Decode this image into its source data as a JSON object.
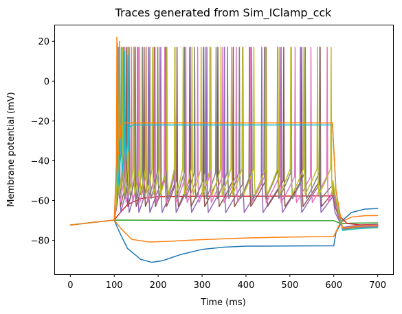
{
  "chart_data": {
    "type": "line",
    "title": "Traces generated from Sim_IClamp_cck",
    "xlabel": "Time (ms)",
    "ylabel": "Membrane potential (mV)",
    "xlim": [
      -35,
      735
    ],
    "ylim": [
      -97,
      28
    ],
    "xticks": [
      0,
      100,
      200,
      300,
      400,
      500,
      600,
      700
    ],
    "yticks": [
      -80,
      -60,
      -40,
      -20,
      0,
      20
    ],
    "grid": false,
    "legend": "none",
    "stim_start": 100,
    "stim_end": 600,
    "series": [
      {
        "color": "#1f77b4",
        "kind": "passive",
        "points": [
          [
            0,
            -72.3
          ],
          [
            50,
            -71
          ],
          [
            100,
            -69.8
          ],
          [
            110,
            -75
          ],
          [
            130,
            -84
          ],
          [
            160,
            -89.5
          ],
          [
            185,
            -91
          ],
          [
            210,
            -90.2
          ],
          [
            250,
            -87.2
          ],
          [
            300,
            -84.5
          ],
          [
            350,
            -83.4
          ],
          [
            400,
            -82.9
          ],
          [
            500,
            -82.8
          ],
          [
            600,
            -82.7
          ],
          [
            605,
            -76
          ],
          [
            620,
            -70
          ],
          [
            640,
            -66
          ],
          [
            670,
            -64.3
          ],
          [
            700,
            -64
          ]
        ]
      },
      {
        "color": "#ff7f0e",
        "kind": "passive",
        "points": [
          [
            0,
            -72.3
          ],
          [
            50,
            -71
          ],
          [
            100,
            -69.8
          ],
          [
            115,
            -74
          ],
          [
            140,
            -79.5
          ],
          [
            180,
            -80.8
          ],
          [
            220,
            -80.5
          ],
          [
            300,
            -79.6
          ],
          [
            400,
            -78.8
          ],
          [
            500,
            -78.3
          ],
          [
            600,
            -78
          ],
          [
            615,
            -71
          ],
          [
            640,
            -68.3
          ],
          [
            670,
            -67.6
          ],
          [
            700,
            -67.5
          ]
        ]
      },
      {
        "color": "#2ca02c",
        "kind": "passive",
        "points": [
          [
            0,
            -72.3
          ],
          [
            50,
            -71
          ],
          [
            100,
            -69.8
          ],
          [
            200,
            -69.9
          ],
          [
            400,
            -70.1
          ],
          [
            600,
            -70.1
          ],
          [
            615,
            -71.5
          ],
          [
            650,
            -71.3
          ],
          [
            700,
            -71.2
          ]
        ]
      },
      {
        "color": "#d62728",
        "kind": "passive",
        "points": [
          [
            0,
            -72.3
          ],
          [
            50,
            -71
          ],
          [
            100,
            -69.8
          ],
          [
            110,
            -67
          ],
          [
            130,
            -62
          ],
          [
            160,
            -59
          ],
          [
            200,
            -58
          ],
          [
            300,
            -57.8
          ],
          [
            450,
            -57.8
          ],
          [
            600,
            -57.6
          ],
          [
            610,
            -67
          ],
          [
            630,
            -71.5
          ],
          [
            660,
            -72.2
          ],
          [
            700,
            -72
          ]
        ]
      },
      {
        "color": "#9467bd",
        "kind": "spiking",
        "spikes": [
          112,
          131,
          153,
          178,
          206,
          238,
          273,
          311,
          351,
          393,
          436,
          480,
          524,
          568
        ],
        "peak": 17,
        "trough": -66,
        "rest": -58,
        "after": -72.5
      },
      {
        "color": "#8c564b",
        "kind": "spiking",
        "spikes": [
          111,
          128,
          147,
          168,
          191,
          216,
          243,
          272,
          303,
          336,
          371,
          408,
          446,
          486,
          527,
          569
        ],
        "peak": 17,
        "trough": -63,
        "rest": -56,
        "after": -73
      },
      {
        "color": "#e377c2",
        "kind": "spiking",
        "spikes": [
          110,
          124,
          139,
          155,
          173,
          193,
          215,
          238,
          263,
          290,
          318,
          347,
          378,
          410,
          443,
          477,
          512,
          548,
          585
        ],
        "peak": 17,
        "trough": -61,
        "rest": -54,
        "after": -73.2
      },
      {
        "color": "#7f7f7f",
        "kind": "spiking",
        "spikes": [
          109,
          121,
          134,
          148,
          164,
          181,
          199,
          218,
          238,
          260,
          283,
          307,
          332,
          358,
          385,
          413,
          442,
          472,
          503,
          535,
          568
        ],
        "peak": 17,
        "trough": -59,
        "rest": -52,
        "after": -73.5
      },
      {
        "color": "#bcbd22",
        "kind": "spiking",
        "spikes": [
          108,
          119,
          131,
          144,
          158,
          172,
          187,
          203,
          220,
          238,
          257,
          277,
          298,
          320,
          343,
          367,
          392,
          418,
          445,
          473,
          502,
          532,
          563,
          594
        ],
        "peak": 17,
        "trough": -57,
        "rest": -50,
        "after": -74
      },
      {
        "color": "#17becf",
        "kind": "block",
        "spikes": [
          107,
          116,
          124,
          131
        ],
        "peak": 19,
        "trough": -53,
        "plateau": -22,
        "after": -74
      },
      {
        "color": "#ff7f0e",
        "kind": "block",
        "spikes": [
          106,
          112
        ],
        "peak": 22,
        "trough": -35,
        "plateau": -21,
        "after": -72.8
      }
    ]
  }
}
